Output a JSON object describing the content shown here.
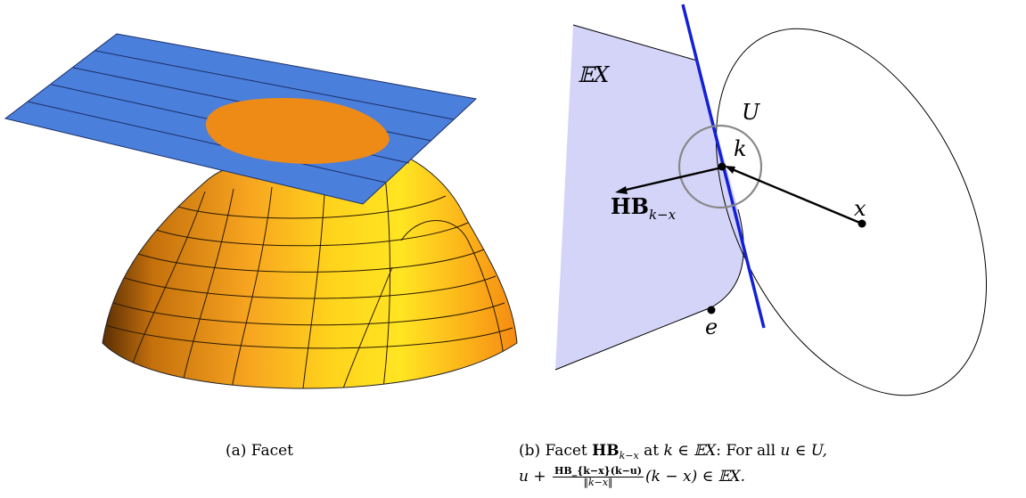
{
  "colors": {
    "plane": "#4a7fdc",
    "dome_light": "#ffe522",
    "dome_mid": "#f7a420",
    "dome_dark": "#6e3a05",
    "facet_ellipse": "#ee8a16",
    "region_fill": "#d4d4f8",
    "hyperplane": "#1320d8",
    "neighborhood": "#888888"
  },
  "left_panel": {
    "caption": "(a) Facet"
  },
  "right_panel": {
    "label_EX": "𝔼X",
    "label_U": "U",
    "label_k": "k",
    "label_x": "x",
    "label_e": "e",
    "label_HB": "HB",
    "label_HB_sub": "k−x",
    "caption_prefix": "(b) Facet ",
    "caption_HB": "HB",
    "caption_HB_sub": "k−x",
    "caption_mid": " at ",
    "caption_k_in_EX": "k ∈ 𝔼X",
    "caption_for_all": ": For all ",
    "caption_u_in_U": "u ∈ U,",
    "caption_line2_u": "u + ",
    "caption_frac_num": "HB_{k−x}(k−u)",
    "caption_frac_den": "‖k−x‖",
    "caption_line2_end": "(k − x) ∈ 𝔼X."
  }
}
